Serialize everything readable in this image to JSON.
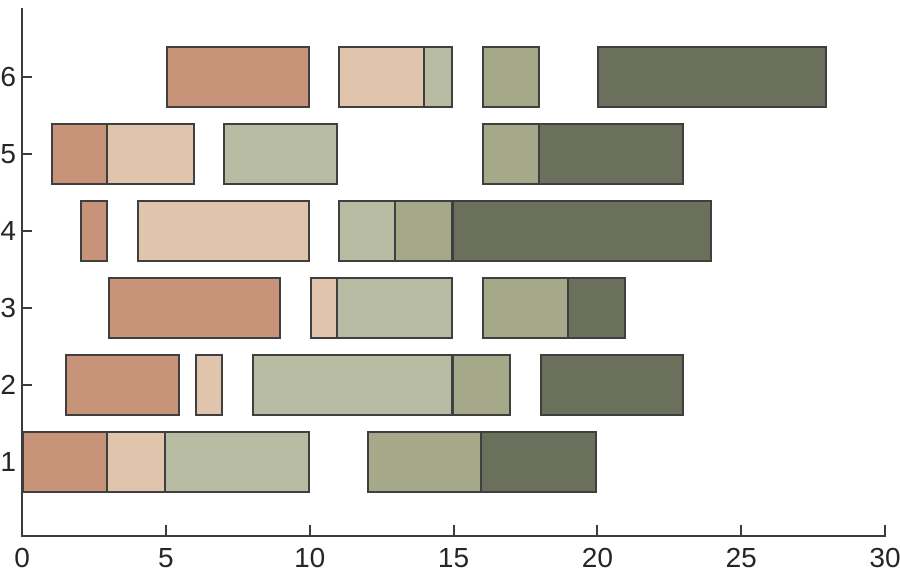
{
  "chart_data": {
    "type": "gantt",
    "orientation": "horizontal",
    "x_range": [
      0,
      30
    ],
    "x_ticks": [
      0,
      5,
      10,
      15,
      20,
      25,
      30
    ],
    "y_tick_labels": [
      "1",
      "2",
      "3",
      "4",
      "5",
      "6"
    ],
    "grid": false,
    "legend": false,
    "palette": {
      "salmon": "#c7947a",
      "blush": "#e1c4ac",
      "light_sage": "#b7bba1",
      "sage": "#a6a88a",
      "dark_olive": "#6b705c"
    },
    "series_order": [
      "salmon",
      "blush",
      "light_sage",
      "sage",
      "dark_olive"
    ],
    "colors": {
      "segment_border": "#3f3f3f",
      "axis": "#3c3c3c",
      "tick_label": "#262626",
      "background": "#ffffff"
    },
    "rows": [
      {
        "y": "1",
        "segments": [
          {
            "start": 0,
            "end": 3,
            "color": "salmon"
          },
          {
            "start": 3,
            "end": 5,
            "color": "blush"
          },
          {
            "start": 5,
            "end": 10,
            "color": "light_sage"
          },
          {
            "start": 12,
            "end": 16,
            "color": "sage"
          },
          {
            "start": 16,
            "end": 20,
            "color": "dark_olive"
          }
        ]
      },
      {
        "y": "2",
        "segments": [
          {
            "start": 1.5,
            "end": 5.5,
            "color": "salmon"
          },
          {
            "start": 6,
            "end": 7,
            "color": "blush"
          },
          {
            "start": 8,
            "end": 15,
            "color": "light_sage"
          },
          {
            "start": 15,
            "end": 17,
            "color": "sage"
          },
          {
            "start": 18,
            "end": 23,
            "color": "dark_olive"
          }
        ]
      },
      {
        "y": "3",
        "segments": [
          {
            "start": 3,
            "end": 9,
            "color": "salmon"
          },
          {
            "start": 10,
            "end": 11,
            "color": "blush"
          },
          {
            "start": 11,
            "end": 15,
            "color": "light_sage"
          },
          {
            "start": 16,
            "end": 19,
            "color": "sage"
          },
          {
            "start": 19,
            "end": 21,
            "color": "dark_olive"
          }
        ]
      },
      {
        "y": "4",
        "segments": [
          {
            "start": 2,
            "end": 3,
            "color": "salmon"
          },
          {
            "start": 4,
            "end": 10,
            "color": "blush"
          },
          {
            "start": 11,
            "end": 13,
            "color": "light_sage"
          },
          {
            "start": 13,
            "end": 15,
            "color": "sage"
          },
          {
            "start": 15,
            "end": 24,
            "color": "dark_olive"
          }
        ]
      },
      {
        "y": "5",
        "segments": [
          {
            "start": 1,
            "end": 3,
            "color": "salmon"
          },
          {
            "start": 3,
            "end": 6,
            "color": "blush"
          },
          {
            "start": 7,
            "end": 11,
            "color": "light_sage"
          },
          {
            "start": 16,
            "end": 18,
            "color": "sage"
          },
          {
            "start": 18,
            "end": 23,
            "color": "dark_olive"
          }
        ]
      },
      {
        "y": "6",
        "segments": [
          {
            "start": 5,
            "end": 10,
            "color": "salmon"
          },
          {
            "start": 11,
            "end": 14,
            "color": "blush"
          },
          {
            "start": 14,
            "end": 15,
            "color": "light_sage"
          },
          {
            "start": 16,
            "end": 18,
            "color": "sage"
          },
          {
            "start": 20,
            "end": 28,
            "color": "dark_olive"
          }
        ]
      }
    ]
  }
}
